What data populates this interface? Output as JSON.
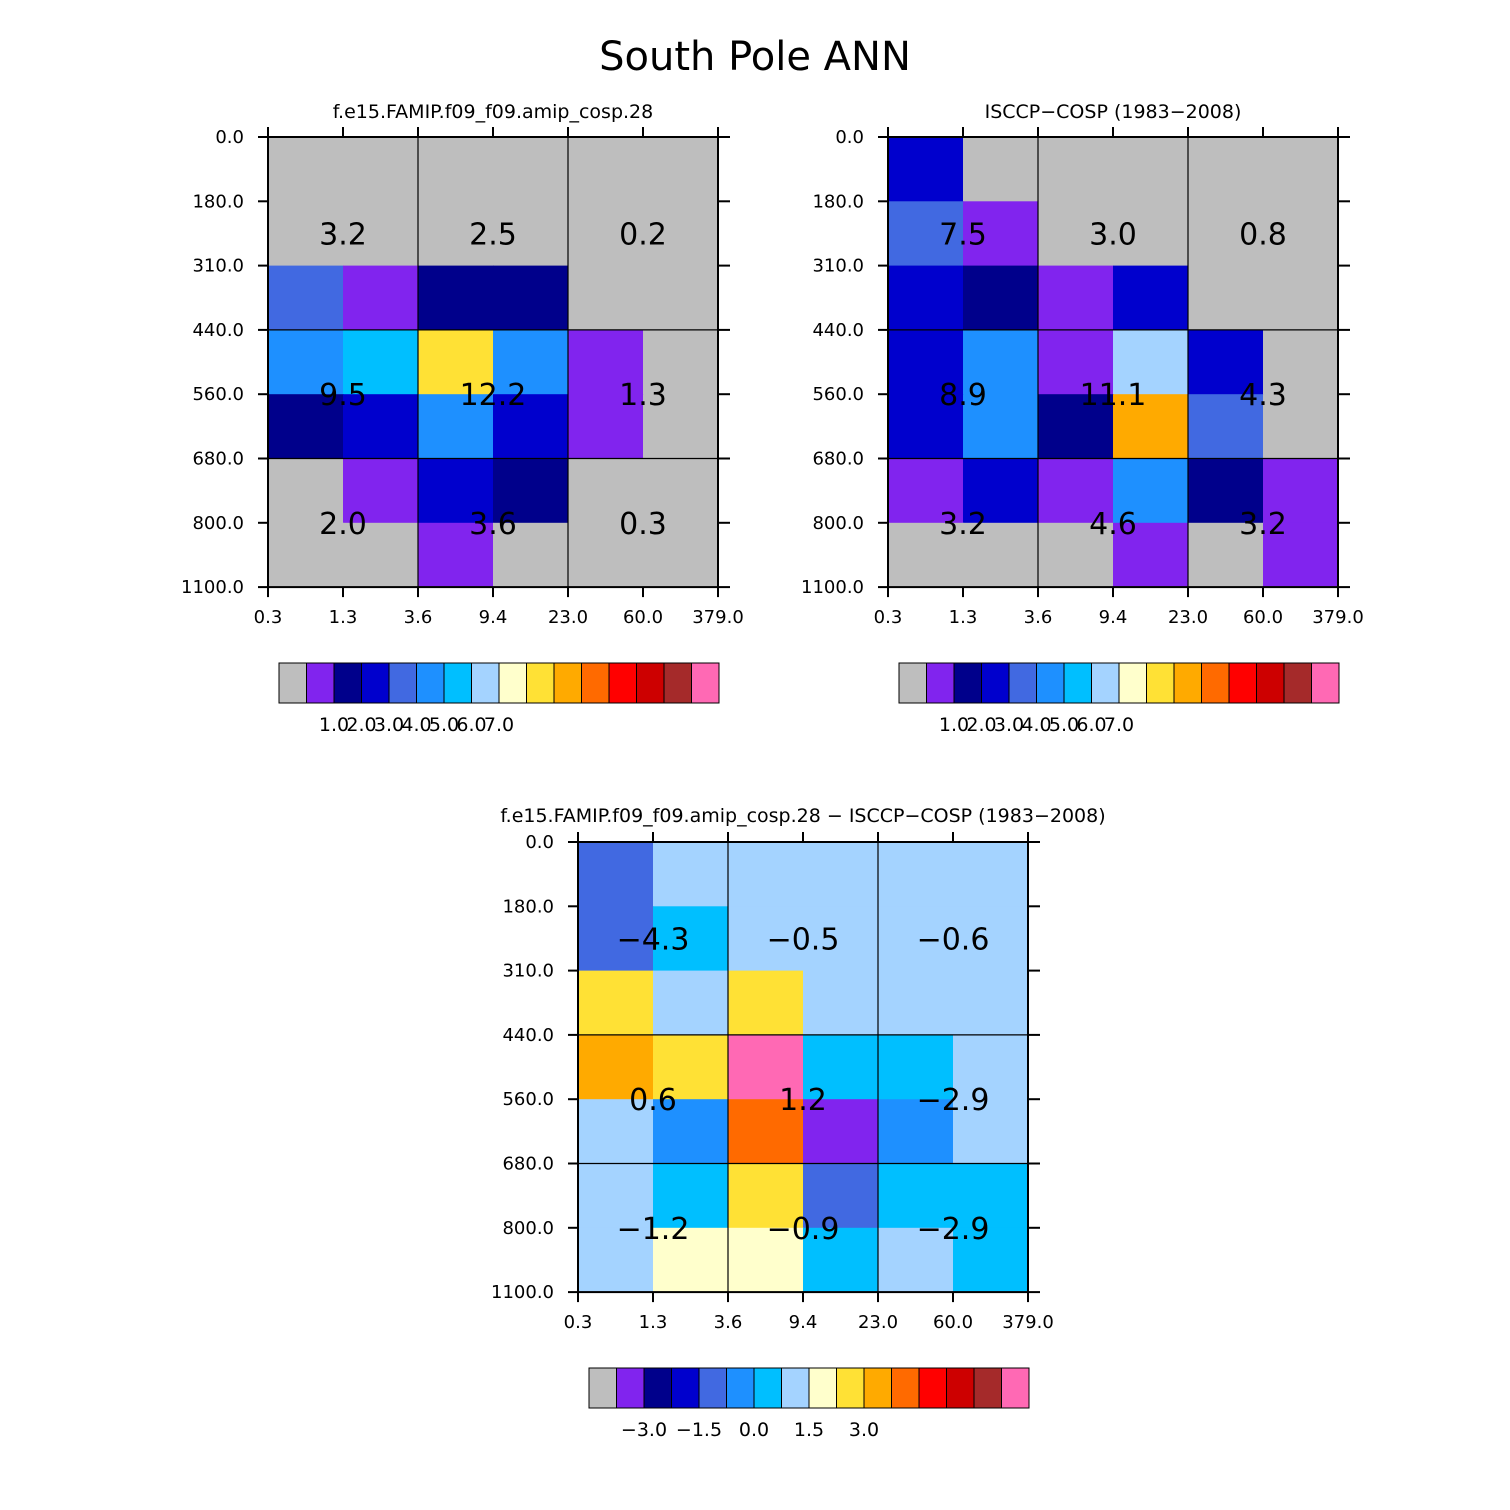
{
  "title": "South Pole ANN",
  "palette": [
    "#bebebe",
    "#8124ee",
    "#00008b",
    "#0000cd",
    "#4169e1",
    "#1e90ff",
    "#00bfff",
    "#a4d3ff",
    "#ffffcc",
    "#ffe135",
    "#ffaa00",
    "#ff6a00",
    "#ff0000",
    "#cd0000",
    "#a52a2a",
    "#ff69b4"
  ],
  "chart_data": [
    {
      "type": "heatmap",
      "title": "f.e15.FAMIP.f09_f09.amip_cosp.28",
      "x_ticks": [
        "0.3",
        "1.3",
        "3.6",
        "9.4",
        "23.0",
        "60.0",
        "379.0"
      ],
      "y_ticks": [
        "0.0",
        "180.0",
        "310.0",
        "440.0",
        "560.0",
        "680.0",
        "800.0",
        "1100.0"
      ],
      "cell_colors": [
        [
          0,
          0,
          0,
          0,
          0,
          0
        ],
        [
          0,
          0,
          0,
          0,
          0,
          0
        ],
        [
          4,
          1,
          2,
          2,
          0,
          0
        ],
        [
          5,
          6,
          9,
          5,
          1,
          0
        ],
        [
          2,
          3,
          5,
          3,
          1,
          0
        ],
        [
          0,
          1,
          3,
          2,
          0,
          0
        ],
        [
          0,
          0,
          1,
          0,
          0,
          0
        ]
      ],
      "group_labels": [
        [
          "3.2",
          "2.5",
          "0.2"
        ],
        [
          "9.5",
          "12.2",
          "1.3"
        ],
        [
          "2.0",
          "3.6",
          "0.3"
        ]
      ],
      "colorbar_labels": [
        "1.0",
        "2.0",
        "3.0",
        "4.0",
        "5.0",
        "6.0",
        "7.0"
      ],
      "colorbar_positions": [
        1.5,
        2.5,
        3.5,
        4.5,
        5.5,
        6.5,
        7.5
      ]
    },
    {
      "type": "heatmap",
      "title": "ISCCP-COSP (1983-2008)",
      "x_ticks": [
        "0.3",
        "1.3",
        "3.6",
        "9.4",
        "23.0",
        "60.0",
        "379.0"
      ],
      "y_ticks": [
        "0.0",
        "180.0",
        "310.0",
        "440.0",
        "560.0",
        "680.0",
        "800.0",
        "1100.0"
      ],
      "cell_colors": [
        [
          3,
          0,
          0,
          0,
          0,
          0
        ],
        [
          4,
          1,
          0,
          0,
          0,
          0
        ],
        [
          3,
          2,
          1,
          3,
          0,
          0
        ],
        [
          3,
          5,
          1,
          7,
          3,
          0
        ],
        [
          3,
          5,
          2,
          10,
          4,
          0
        ],
        [
          1,
          3,
          1,
          5,
          2,
          1
        ],
        [
          0,
          0,
          0,
          1,
          0,
          1
        ]
      ],
      "group_labels": [
        [
          "7.5",
          "3.0",
          "0.8"
        ],
        [
          "8.9",
          "11.1",
          "4.3"
        ],
        [
          "3.2",
          "4.6",
          "3.2"
        ]
      ],
      "colorbar_labels": [
        "1.0",
        "2.0",
        "3.0",
        "4.0",
        "5.0",
        "6.0",
        "7.0"
      ],
      "colorbar_positions": [
        1.5,
        2.5,
        3.5,
        4.5,
        5.5,
        6.5,
        7.5
      ]
    },
    {
      "type": "heatmap",
      "title": "f.e15.FAMIP.f09_f09.amip_cosp.28 - ISCCP-COSP (1983-2008)",
      "x_ticks": [
        "0.3",
        "1.3",
        "3.6",
        "9.4",
        "23.0",
        "60.0",
        "379.0"
      ],
      "y_ticks": [
        "0.0",
        "180.0",
        "310.0",
        "440.0",
        "560.0",
        "680.0",
        "800.0",
        "1100.0"
      ],
      "cell_colors": [
        [
          4,
          7,
          7,
          7,
          7,
          7
        ],
        [
          4,
          6,
          7,
          7,
          7,
          7
        ],
        [
          9,
          7,
          9,
          7,
          7,
          7
        ],
        [
          10,
          9,
          15,
          6,
          6,
          7
        ],
        [
          7,
          5,
          11,
          1,
          5,
          7
        ],
        [
          7,
          6,
          9,
          4,
          6,
          6
        ],
        [
          7,
          8,
          8,
          6,
          7,
          6
        ]
      ],
      "group_labels": [
        [
          "-4.3",
          "-0.5",
          "-0.6"
        ],
        [
          "0.6",
          "1.2",
          "-2.9"
        ],
        [
          "-1.2",
          "-0.9",
          "-2.9"
        ]
      ],
      "colorbar_labels": [
        "-3.0",
        "-1.5",
        "0.0",
        "1.5",
        "3.0"
      ],
      "colorbar_positions": [
        1.5,
        3.5,
        5.5,
        7.5,
        9.5
      ]
    }
  ]
}
